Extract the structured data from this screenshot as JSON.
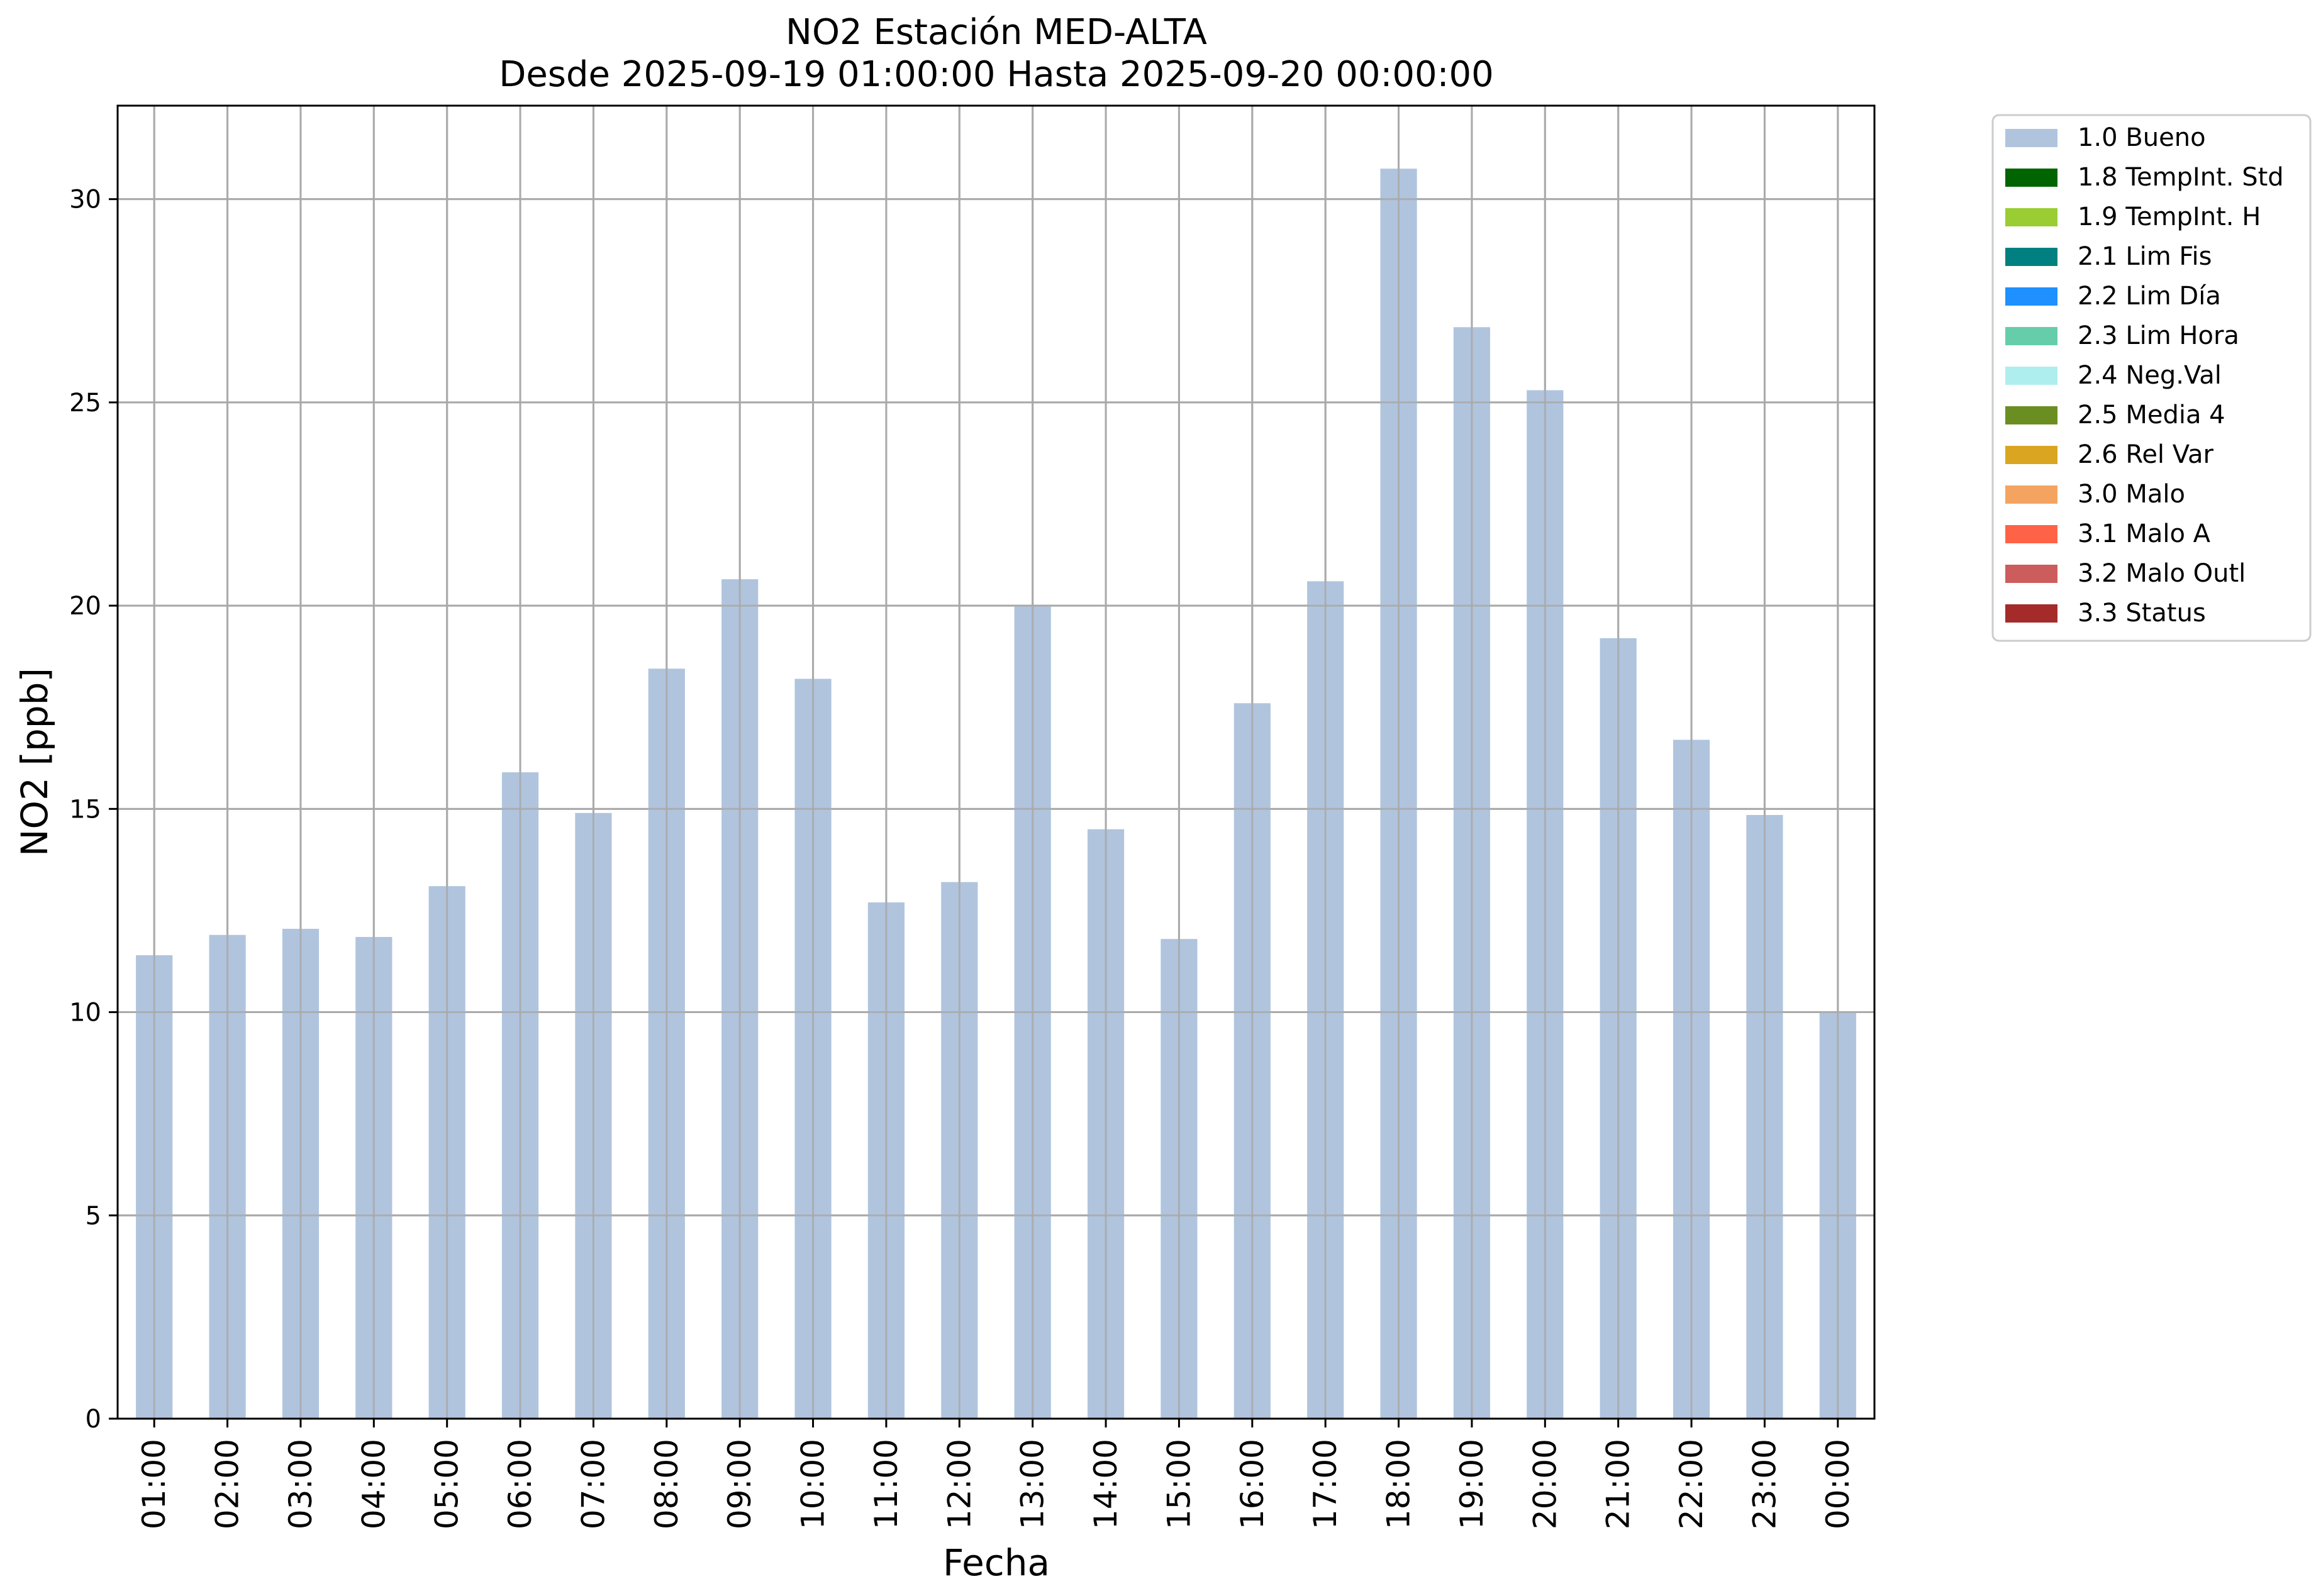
{
  "chart_data": {
    "type": "bar",
    "title_line1": "NO2 Estación MED-ALTA",
    "title_line2": "Desde 2025-09-19 01:00:00 Hasta 2025-09-20 00:00:00",
    "xlabel": "Fecha",
    "ylabel": "NO2 [ppb]",
    "ylim": [
      0,
      32.3
    ],
    "yticks": [
      0,
      5,
      10,
      15,
      20,
      25,
      30
    ],
    "grid": true,
    "legend_position": "outside-top-right",
    "categories": [
      "01:00",
      "02:00",
      "03:00",
      "04:00",
      "05:00",
      "06:00",
      "07:00",
      "08:00",
      "09:00",
      "10:00",
      "11:00",
      "12:00",
      "13:00",
      "14:00",
      "15:00",
      "16:00",
      "17:00",
      "18:00",
      "19:00",
      "20:00",
      "21:00",
      "22:00",
      "23:00",
      "00:00"
    ],
    "series": [
      {
        "name": "1.0 Bueno",
        "color": "#b0c4de",
        "values": [
          11.4,
          11.9,
          12.05,
          11.85,
          13.1,
          15.9,
          14.9,
          18.45,
          20.65,
          18.2,
          12.7,
          13.2,
          20.0,
          14.5,
          11.8,
          17.6,
          20.6,
          30.75,
          26.85,
          25.3,
          19.2,
          16.7,
          14.85,
          10.0
        ]
      }
    ],
    "legend": [
      {
        "label": "1.0 Bueno",
        "color": "#b0c4de"
      },
      {
        "label": "1.8 TempInt. Std",
        "color": "#006400"
      },
      {
        "label": "1.9 TempInt. H",
        "color": "#9acd32"
      },
      {
        "label": "2.1 Lim Fis",
        "color": "#008080"
      },
      {
        "label": "2.2 Lim Día",
        "color": "#1e90ff"
      },
      {
        "label": "2.3 Lim Hora",
        "color": "#66cdaa"
      },
      {
        "label": "2.4 Neg.Val",
        "color": "#afeeee"
      },
      {
        "label": "2.5 Media 4",
        "color": "#6b8e23"
      },
      {
        "label": "2.6 Rel Var",
        "color": "#daa520"
      },
      {
        "label": "3.0 Malo",
        "color": "#f4a460"
      },
      {
        "label": "3.1 Malo A",
        "color": "#ff6347"
      },
      {
        "label": "3.2 Malo Outl",
        "color": "#cd5c5c"
      },
      {
        "label": "3.3 Status",
        "color": "#a52a2a"
      }
    ]
  }
}
